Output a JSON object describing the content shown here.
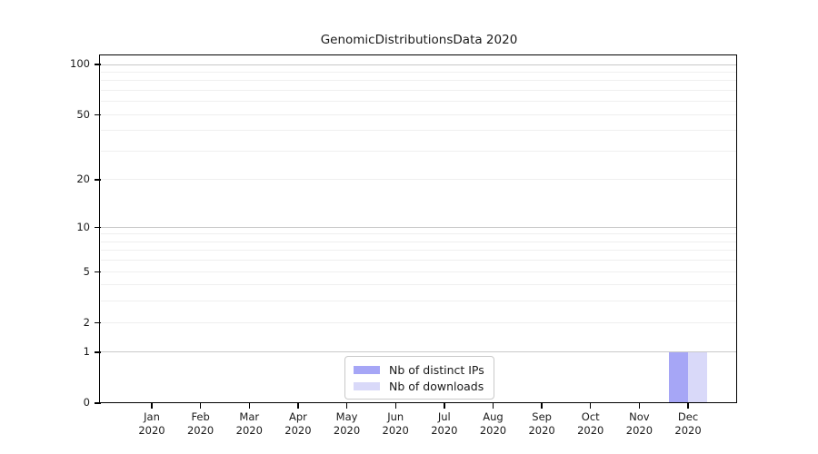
{
  "title": "GenomicDistributionsData 2020",
  "colors": {
    "background": "#ffffff",
    "spine": "#000000",
    "grid_minor": "#efefef",
    "grid_major": "#c9c9c9",
    "text": "#1a1a1a",
    "legend_border": "#c9c9c9"
  },
  "chart_data": {
    "type": "bar",
    "title": "GenomicDistributionsData 2020",
    "xlabel": "",
    "ylabel": "",
    "categories": [
      "Jan",
      "Feb",
      "Mar",
      "Apr",
      "May",
      "Jun",
      "Jul",
      "Aug",
      "Sep",
      "Oct",
      "Nov",
      "Dec"
    ],
    "category_year_label": "2020",
    "series": [
      {
        "name": "Nb of distinct IPs",
        "color": "#a6a6f6",
        "values": [
          0,
          0,
          0,
          0,
          0,
          0,
          0,
          0,
          0,
          0,
          0,
          1
        ]
      },
      {
        "name": "Nb of downloads",
        "color": "#d9d9f9",
        "values": [
          0,
          0,
          0,
          0,
          0,
          0,
          0,
          0,
          0,
          0,
          0,
          1
        ]
      }
    ],
    "yscale": "log1p",
    "ylim": [
      0,
      112
    ],
    "yticks": [
      0,
      1,
      2,
      5,
      10,
      20,
      50,
      100
    ],
    "grid": true,
    "grid_minor_values": [
      2,
      3,
      4,
      5,
      6,
      7,
      8,
      9,
      20,
      30,
      40,
      50,
      60,
      70,
      80,
      90
    ],
    "grid_major_values": [
      1,
      10,
      100
    ],
    "legend_position": "lower center",
    "legend_entries": [
      "Nb of distinct IPs",
      "Nb of downloads"
    ]
  }
}
